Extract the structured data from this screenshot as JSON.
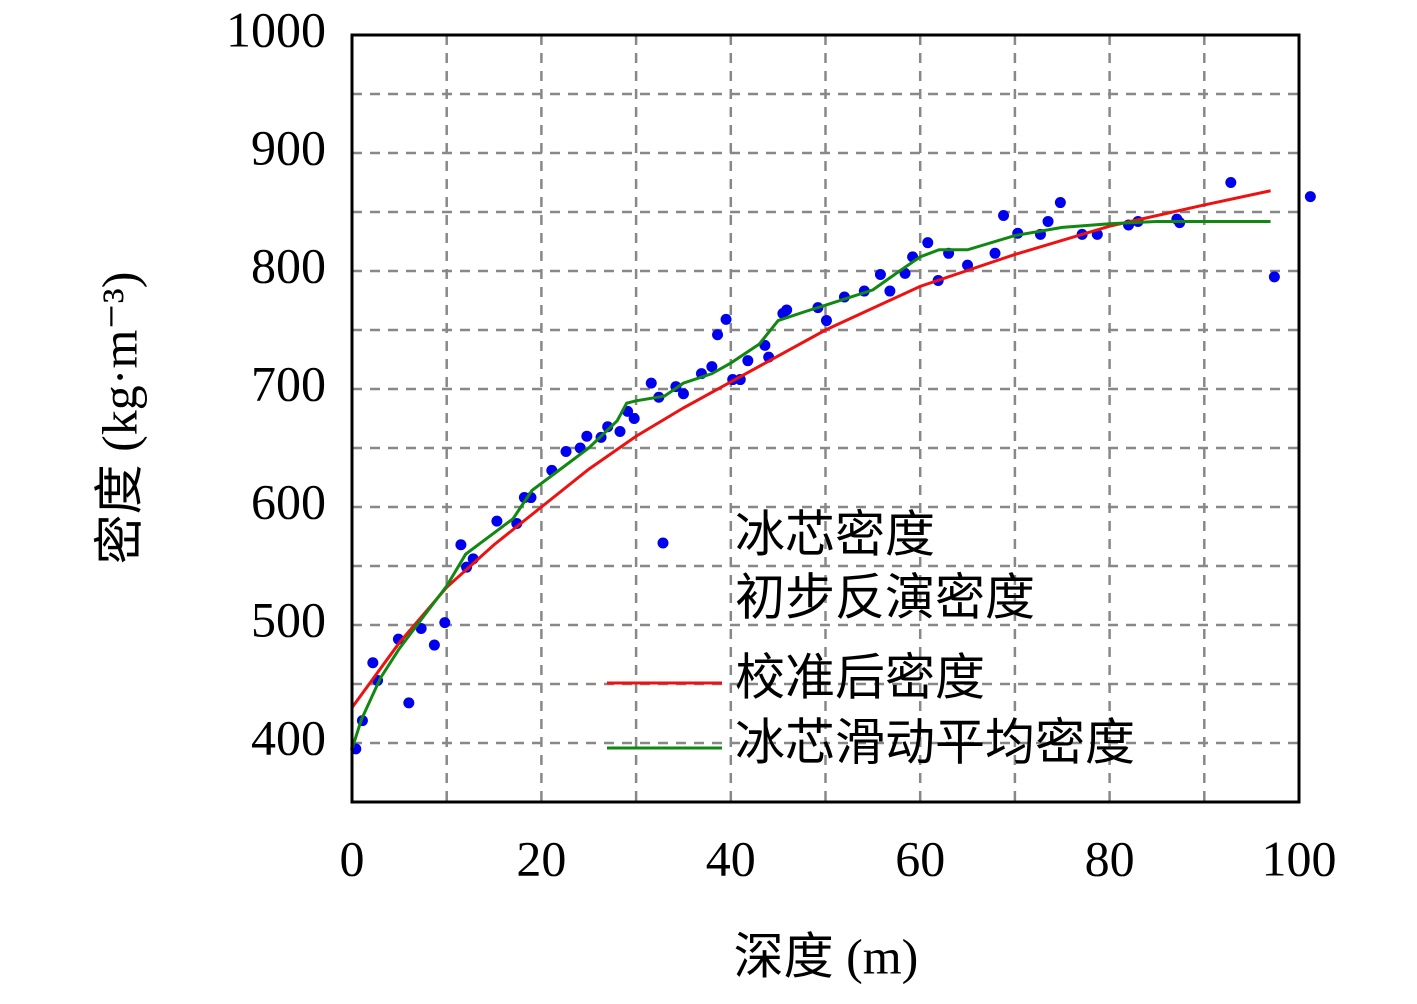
{
  "chart_data": {
    "type": "scatter",
    "xlabel": "深度 (m)",
    "ylabel": "密度 (kg·m⁻³)",
    "xlim": [
      0,
      100
    ],
    "ylim": [
      350,
      1000
    ],
    "xticks": [
      0,
      20,
      40,
      60,
      80,
      100
    ],
    "xminor_ticks": [
      10,
      30,
      50,
      70,
      90
    ],
    "yticks": [
      400,
      500,
      600,
      700,
      800,
      900,
      1000
    ],
    "yminor_ticks": [
      450,
      550,
      650,
      750,
      850,
      950
    ],
    "grid": true,
    "legend": "lower right",
    "series": [
      {
        "name": "冰芯密度",
        "type": "scatter",
        "color": "#0000ee",
        "x": [
          0.4,
          1.1,
          2.2,
          2.7,
          4.9,
          6.0,
          7.3,
          8.7,
          9.8,
          11.5,
          12.1,
          12.8,
          15.3,
          17.4,
          18.2,
          18.9,
          21.1,
          22.6,
          24.1,
          24.8,
          26.3,
          27.0,
          28.3,
          29.1,
          29.8,
          31.6,
          32.4,
          34.2,
          35.0,
          36.9,
          38.0,
          38.6,
          39.5,
          40.2,
          41.0,
          41.8,
          43.6,
          44.0,
          45.5,
          45.9,
          49.2,
          50.1,
          52.0,
          54.1,
          55.8,
          56.8,
          58.4,
          59.2,
          60.8,
          61.9,
          63.0,
          65.0,
          67.9,
          68.8,
          70.3,
          72.7,
          73.5,
          74.8,
          77.1,
          78.7,
          82.0,
          83.0,
          87.1,
          87.4,
          92.8,
          97.4,
          101.2
        ],
        "y": [
          395,
          419,
          468,
          453,
          488,
          434,
          497,
          483,
          502,
          568,
          549,
          556,
          588,
          586,
          608,
          608,
          631,
          647,
          650,
          660,
          659,
          668,
          664,
          681,
          675,
          705,
          693,
          702,
          696,
          713,
          719,
          746,
          759,
          708,
          708,
          724,
          737,
          727,
          764,
          767,
          769,
          758,
          778,
          783,
          797,
          783,
          798,
          812,
          824,
          792,
          815,
          805,
          815,
          847,
          832,
          831,
          842,
          858,
          831,
          831,
          839,
          842,
          844,
          841,
          875,
          795,
          863
        ]
      },
      {
        "name": "初步反演密度",
        "type": "none",
        "x": [],
        "y": []
      },
      {
        "name": "校准后密度",
        "type": "line",
        "color": "#ee1111",
        "x": [
          0,
          5,
          10,
          15,
          20,
          25,
          30,
          35,
          40,
          50,
          60,
          70,
          80,
          90,
          97
        ],
        "y": [
          430,
          485,
          532,
          568,
          600,
          632,
          660,
          684,
          706,
          750,
          787,
          814,
          838,
          856,
          868
        ]
      },
      {
        "name": "冰芯滑动平均密度",
        "type": "line",
        "color": "#118811",
        "x": [
          0,
          1,
          3,
          5,
          8,
          10,
          12,
          15,
          17,
          19,
          22,
          25,
          28,
          29,
          30,
          33,
          35,
          38,
          40,
          43,
          45,
          48,
          50,
          55,
          58,
          60,
          62,
          65,
          70,
          75,
          80,
          85,
          90,
          97
        ],
        "y": [
          395,
          420,
          455,
          480,
          512,
          533,
          560,
          578,
          590,
          614,
          632,
          650,
          673,
          688,
          690,
          694,
          705,
          713,
          722,
          738,
          758,
          766,
          771,
          784,
          801,
          812,
          818,
          818,
          830,
          837,
          840,
          842,
          842,
          842
        ]
      }
    ]
  }
}
